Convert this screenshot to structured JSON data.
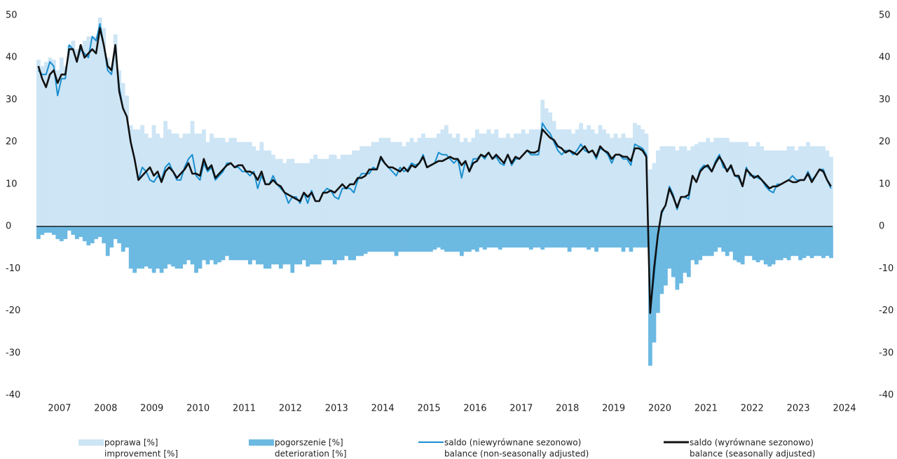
{
  "chart_data": {
    "type": "bar_line",
    "ylim": [
      -40,
      50
    ],
    "yticks": [
      50,
      40,
      30,
      20,
      10,
      0,
      -10,
      -20,
      -30,
      -40
    ],
    "xticks": [
      2007,
      2008,
      2009,
      2010,
      2011,
      2012,
      2013,
      2014,
      2015,
      2016,
      2017,
      2018,
      2019,
      2020,
      2021,
      2022,
      2023,
      2024
    ],
    "series": [
      {
        "name": "poprawa [%]",
        "name_en": "improvement [%]",
        "kind": "bar",
        "color": "#cde5f5",
        "values": [
          39.5,
          38,
          39,
          40,
          39.5,
          37,
          40,
          38,
          43,
          44,
          42,
          43,
          44,
          45,
          45,
          45,
          49.5,
          47,
          40,
          38,
          45.5,
          37,
          34,
          31,
          24,
          23,
          23,
          24,
          22,
          21,
          24,
          22,
          21,
          25,
          23,
          22,
          22,
          21,
          22,
          22,
          25,
          22,
          22,
          23,
          20,
          22,
          21,
          21,
          21,
          20,
          21,
          21,
          20,
          20,
          20,
          20,
          19,
          18,
          20,
          18,
          18,
          17,
          16,
          16,
          15,
          16,
          16,
          15,
          15,
          15,
          15,
          16,
          17,
          16,
          16,
          16,
          17,
          17,
          16,
          17,
          17,
          17,
          18,
          18,
          19,
          19,
          19,
          20,
          20,
          21,
          21,
          21,
          20,
          20,
          20,
          19,
          20,
          21,
          20,
          21,
          22,
          21,
          21,
          21,
          22,
          23,
          24,
          22,
          21,
          22,
          20,
          21,
          20,
          21,
          23,
          22,
          22,
          23,
          22,
          23,
          21,
          21,
          22,
          21,
          22,
          22,
          23,
          22,
          23,
          23,
          23,
          30,
          28,
          27,
          25,
          23,
          23,
          23,
          23,
          22,
          23,
          24.5,
          23,
          24,
          23,
          22,
          24,
          23,
          22,
          21,
          22,
          21,
          22,
          21,
          21,
          24.5,
          24,
          23,
          22,
          13.5,
          15,
          18,
          19,
          19,
          19,
          19,
          18,
          19,
          19,
          18,
          19,
          19.5,
          20,
          20,
          21,
          20,
          21,
          21,
          21,
          21,
          20,
          20,
          20,
          20,
          20,
          19,
          19,
          20,
          19,
          18,
          18,
          18,
          18,
          18,
          18,
          19,
          19,
          18,
          19,
          19,
          20,
          19,
          19,
          19,
          19,
          18,
          16.5
        ]
      },
      {
        "name": "pogorszenie [%]",
        "name_en": "deterioration [%]",
        "kind": "bar",
        "color": "#6cb9e2",
        "values": [
          -3,
          -2,
          -1.5,
          -1.5,
          -2,
          -3,
          -3.5,
          -3,
          -1,
          -2,
          -3,
          -2.5,
          -3.5,
          -4.5,
          -4,
          -3,
          -2.5,
          -4,
          -7,
          -5,
          -3,
          -4,
          -6,
          -5,
          -10,
          -11,
          -10,
          -10,
          -9.5,
          -10,
          -11,
          -10,
          -11,
          -10,
          -9,
          -9.5,
          -10,
          -10,
          -9,
          -8,
          -9,
          -11,
          -10,
          -8,
          -9,
          -8,
          -9,
          -8.5,
          -8,
          -7,
          -8,
          -8,
          -8,
          -8,
          -8,
          -9,
          -8,
          -9,
          -9,
          -10,
          -10,
          -9,
          -9,
          -10,
          -9,
          -9,
          -11,
          -9,
          -9,
          -8,
          -9.5,
          -9,
          -9,
          -9,
          -8,
          -8,
          -8,
          -9,
          -8,
          -8,
          -7,
          -8,
          -8,
          -7,
          -7,
          -6.5,
          -6,
          -6,
          -6,
          -6,
          -6,
          -6,
          -6,
          -7,
          -6,
          -6,
          -6,
          -6,
          -6,
          -6,
          -6,
          -6,
          -6,
          -5.5,
          -5,
          -5.5,
          -6,
          -6,
          -6,
          -6,
          -7,
          -6,
          -6,
          -5.5,
          -6,
          -5,
          -5.5,
          -5,
          -5,
          -5,
          -5.5,
          -5,
          -5,
          -5,
          -5,
          -5,
          -5,
          -5,
          -5.5,
          -5,
          -5,
          -5.5,
          -5,
          -5,
          -5,
          -5,
          -5,
          -5,
          -6,
          -5,
          -5,
          -5,
          -5,
          -5.5,
          -5,
          -6,
          -5,
          -5,
          -5,
          -5,
          -5,
          -5,
          -6,
          -5,
          -6,
          -5,
          -5,
          -5,
          -5,
          -33,
          -27.5,
          -20.5,
          -16,
          -14,
          -10,
          -12,
          -15,
          -13.5,
          -11,
          -12,
          -8,
          -9,
          -8,
          -7,
          -7,
          -7,
          -6,
          -5,
          -6,
          -7,
          -6,
          -8,
          -8.5,
          -9,
          -7,
          -7,
          -8,
          -8.5,
          -8,
          -9,
          -9.5,
          -9,
          -8,
          -8,
          -7.5,
          -8,
          -7,
          -7,
          -8,
          -7.5,
          -7,
          -7.5,
          -7,
          -7,
          -7.5,
          -7,
          -7.5
        ]
      },
      {
        "name": "saldo (niewyrównane sezonowo)",
        "name_en": "balance (non-seasonally adjusted)",
        "kind": "line",
        "color": "#1a8fd0",
        "values": [
          37,
          36,
          36,
          39,
          38,
          31,
          35,
          35,
          43,
          42,
          39,
          42,
          41,
          40,
          45,
          44,
          48,
          43,
          37,
          36,
          43,
          33,
          28,
          26,
          20,
          16,
          11,
          14,
          13,
          11,
          10.5,
          12,
          11,
          14,
          15,
          13,
          11,
          11,
          14,
          16,
          17,
          12,
          11,
          15,
          13,
          14,
          11,
          12,
          13,
          15,
          15,
          14,
          14,
          13,
          13,
          12,
          13,
          9,
          12,
          10,
          10,
          12,
          10,
          9,
          8,
          5.5,
          7,
          7,
          5.5,
          8,
          5.5,
          8.5,
          6,
          6,
          8,
          9,
          8.5,
          7,
          6.5,
          9,
          9,
          9,
          8,
          11,
          12.5,
          12.5,
          12.5,
          14,
          13.5,
          16,
          15,
          14,
          13,
          12,
          14,
          13,
          13.5,
          15,
          14.5,
          15,
          17,
          14,
          14.5,
          15,
          17.5,
          17,
          17,
          16,
          15,
          16,
          11.5,
          15.5,
          13,
          16,
          16,
          17,
          16,
          17.5,
          16,
          16.5,
          15,
          14.5,
          17,
          14.5,
          16,
          16,
          17,
          18,
          17,
          17,
          17,
          24.5,
          23,
          22,
          20,
          18,
          17,
          18,
          18,
          17,
          18,
          19.5,
          18,
          17.5,
          18,
          16,
          18.5,
          18,
          17,
          15,
          17,
          17,
          16,
          16,
          14.5,
          19.5,
          19,
          18.5,
          17,
          -20,
          -12,
          -2,
          3,
          5,
          9.5,
          7.5,
          4,
          7,
          7,
          6.5,
          12,
          10.5,
          13.5,
          14.5,
          14,
          13,
          15.5,
          17,
          14,
          13.5,
          14,
          12,
          11.5,
          9.5,
          14,
          12,
          12,
          11.5,
          11,
          9.5,
          8.5,
          8,
          10,
          10,
          10.5,
          11,
          12,
          11,
          11,
          11,
          13,
          11,
          12,
          13.5,
          13.5,
          11,
          9
        ]
      },
      {
        "name": "saldo (wyrównane sezonowo)",
        "name_en": "balance (seasonally adjusted)",
        "kind": "line",
        "color": "#111111",
        "values": [
          38,
          35,
          33,
          36,
          37,
          34,
          36,
          36,
          42,
          42,
          39,
          43,
          40,
          41,
          42,
          41,
          47,
          43,
          38,
          37,
          43,
          32,
          28,
          26,
          20,
          16,
          11,
          12,
          13,
          14,
          12,
          13,
          10.5,
          13,
          14,
          13,
          11.5,
          12.5,
          13.5,
          15,
          12.5,
          12.5,
          12,
          16,
          13.5,
          14.5,
          11.5,
          12.5,
          13.5,
          14.5,
          15,
          14,
          14.5,
          14.5,
          13,
          13,
          12.5,
          11,
          13,
          10,
          10,
          11,
          10,
          9.5,
          8,
          7.5,
          7,
          6.5,
          6,
          8,
          7,
          8,
          6,
          6,
          8,
          8,
          8.5,
          8,
          9,
          10,
          9,
          10,
          10,
          11.5,
          11.5,
          12,
          13.5,
          13.5,
          13.5,
          16.5,
          15,
          14,
          14,
          13.5,
          13,
          14,
          13,
          14.5,
          14,
          15,
          16.5,
          14,
          14.5,
          15,
          15.5,
          15.5,
          16,
          16.5,
          16,
          16,
          14.5,
          15.5,
          13,
          15,
          15.5,
          17,
          16.5,
          17.5,
          16,
          17,
          16,
          15,
          17,
          15,
          16.5,
          16,
          17,
          18,
          17.5,
          17.5,
          18,
          23,
          22,
          21,
          20.5,
          19,
          18.5,
          17.5,
          18,
          17.5,
          17,
          18,
          19,
          17.5,
          18,
          16.5,
          19,
          18,
          17.5,
          16,
          17,
          17,
          16.5,
          16.5,
          15.5,
          18.5,
          18.5,
          18,
          16.5,
          -20.5,
          -10,
          -2,
          3.5,
          5,
          9,
          7,
          4.5,
          7,
          7,
          7.5,
          12,
          10.5,
          13,
          14,
          14.5,
          13,
          15,
          16.5,
          15,
          13,
          14.5,
          12,
          12,
          9.5,
          13.5,
          12.5,
          11.5,
          12,
          11,
          10,
          9,
          9.5,
          9.5,
          10,
          10.5,
          11,
          10.5,
          10.5,
          11,
          11,
          12.5,
          10.5,
          12,
          13.5,
          13,
          11,
          9.5
        ]
      }
    ]
  }
}
